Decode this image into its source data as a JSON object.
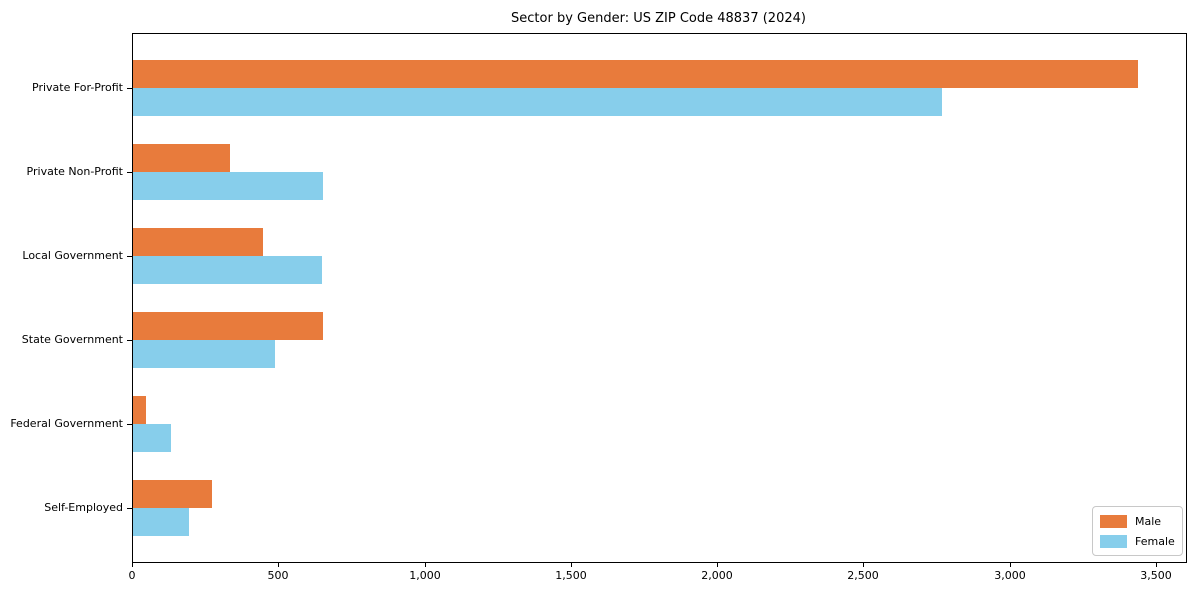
{
  "title": "Sector by Gender: US ZIP Code 48837 (2024)",
  "colors": {
    "male": "#e87b3c",
    "female": "#87ceeb",
    "axis": "#000000",
    "legend_border": "#c8c8c8",
    "background": "#ffffff"
  },
  "legend": {
    "position": "lower right",
    "items": [
      {
        "label": "Male",
        "color": "#e87b3c"
      },
      {
        "label": "Female",
        "color": "#87ceeb"
      }
    ]
  },
  "chart_data": {
    "type": "bar",
    "orientation": "horizontal",
    "title": "Sector by Gender: US ZIP Code 48837 (2024)",
    "categories": [
      "Private For-Profit",
      "Private Non-Profit",
      "Local Government",
      "State Government",
      "Federal Government",
      "Self-Employed"
    ],
    "series": [
      {
        "name": "Male",
        "color": "#e87b3c",
        "values": [
          3435,
          330,
          445,
          650,
          45,
          270
        ]
      },
      {
        "name": "Female",
        "color": "#87ceeb",
        "values": [
          2765,
          650,
          645,
          485,
          130,
          190
        ]
      }
    ],
    "xlabel": "",
    "ylabel": "",
    "xlim": [
      0,
      3600
    ],
    "xticks": [
      0,
      500,
      1000,
      1500,
      2000,
      2500,
      3000,
      3500
    ],
    "xtick_labels": [
      "0",
      "500",
      "1,000",
      "1,500",
      "2,000",
      "2,500",
      "3,000",
      "3,500"
    ],
    "grid": false,
    "legend_position": "lower right"
  }
}
